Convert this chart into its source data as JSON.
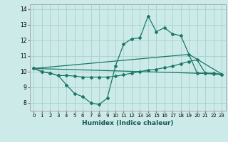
{
  "xlabel": "Humidex (Indice chaleur)",
  "background_color": "#cceae8",
  "grid_color": "#aad4d2",
  "line_color": "#1a7868",
  "xlim": [
    -0.5,
    23.5
  ],
  "ylim": [
    7.5,
    14.3
  ],
  "xticks": [
    0,
    1,
    2,
    3,
    4,
    5,
    6,
    7,
    8,
    9,
    10,
    11,
    12,
    13,
    14,
    15,
    16,
    17,
    18,
    19,
    20,
    21,
    22,
    23
  ],
  "yticks": [
    8,
    9,
    10,
    11,
    12,
    13,
    14
  ],
  "line1_x": [
    0,
    1,
    2,
    3,
    4,
    5,
    6,
    7,
    8,
    9,
    10,
    11,
    12,
    13,
    14,
    15,
    16,
    17,
    18,
    19,
    20,
    21,
    22,
    23
  ],
  "line1_y": [
    10.2,
    10.0,
    9.9,
    9.75,
    9.15,
    8.6,
    8.4,
    8.0,
    7.9,
    8.3,
    10.35,
    11.75,
    12.1,
    12.15,
    13.55,
    12.55,
    12.8,
    12.4,
    12.3,
    11.1,
    9.9,
    9.9,
    9.85,
    9.8
  ],
  "line2_x": [
    0,
    1,
    2,
    3,
    4,
    5,
    6,
    7,
    8,
    9,
    10,
    11,
    12,
    13,
    14,
    15,
    16,
    17,
    18,
    19,
    20,
    21,
    22,
    23
  ],
  "line2_y": [
    10.2,
    10.0,
    9.9,
    9.75,
    9.75,
    9.72,
    9.65,
    9.65,
    9.65,
    9.65,
    9.7,
    9.8,
    9.9,
    10.0,
    10.1,
    10.15,
    10.25,
    10.35,
    10.5,
    10.65,
    10.75,
    9.9,
    9.9,
    9.8
  ],
  "line3_x": [
    0,
    23
  ],
  "line3_y": [
    10.2,
    9.85
  ],
  "line4_x": [
    0,
    19,
    23
  ],
  "line4_y": [
    10.2,
    11.1,
    9.85
  ]
}
